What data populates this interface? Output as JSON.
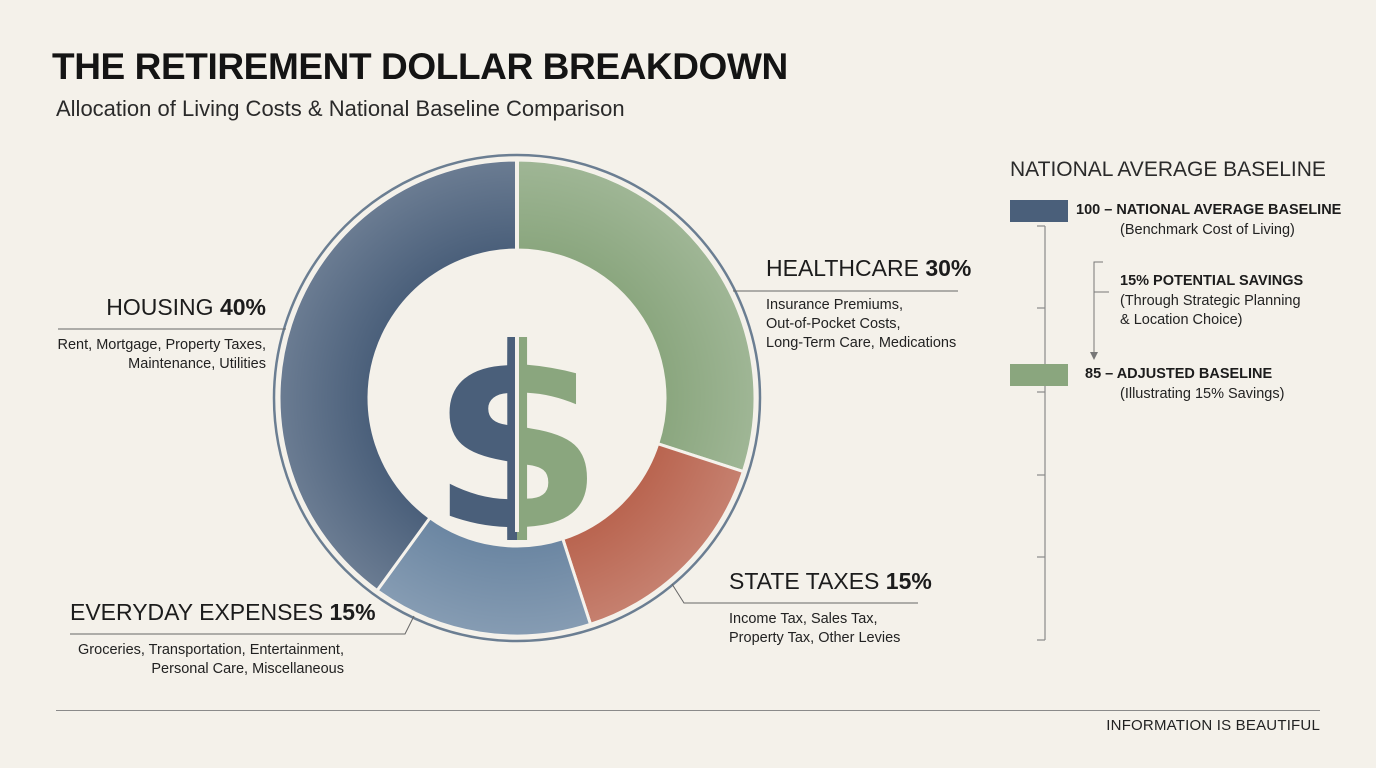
{
  "title": "THE RETIREMENT DOLLAR BREAKDOWN",
  "subtitle": "Allocation of Living Costs & National Baseline Comparison",
  "chart_data": [
    {
      "type": "pie",
      "variant": "donut",
      "center_symbol": "$",
      "slices": [
        {
          "name": "HOUSING",
          "value": 40,
          "value_label": "40%",
          "color": "#4a5f7a",
          "details": [
            "Rent, Mortgage, Property Taxes,",
            "Maintenance, Utilities"
          ]
        },
        {
          "name": "HEALTHCARE",
          "value": 30,
          "value_label": "30%",
          "color": "#8aa67e",
          "details": [
            "Insurance Premiums,",
            "Out-of-Pocket Costs,",
            "Long-Term Care, Medications"
          ]
        },
        {
          "name": "STATE TAXES",
          "value": 15,
          "value_label": "15%",
          "color": "#b9644f",
          "details": [
            "Income Tax, Sales Tax,",
            "Property Tax, Other Levies"
          ]
        },
        {
          "name": "EVERYDAY EXPENSES",
          "value": 15,
          "value_label": "15%",
          "color": "#6b86a2",
          "details": [
            "Groceries, Transportation, Entertainment,",
            "Personal Care, Miscellaneous"
          ]
        }
      ]
    },
    {
      "type": "bar",
      "title": "NATIONAL AVERAGE BASELINE",
      "bars": [
        {
          "value": 100,
          "label": "100 – NATIONAL AVERAGE BASELINE",
          "note": "(Benchmark Cost of Living)",
          "color": "#4a5f7a"
        },
        {
          "value": 85,
          "label": "85 – ADJUSTED BASELINE",
          "note": "(Illustrating 15% Savings)",
          "color": "#8aa67e"
        }
      ],
      "annotation": {
        "label": "15% POTENTIAL SAVINGS",
        "lines": [
          "(Through Strategic Planning",
          "& Location Choice)"
        ]
      }
    }
  ],
  "footer": "INFORMATION IS BEAUTIFUL"
}
